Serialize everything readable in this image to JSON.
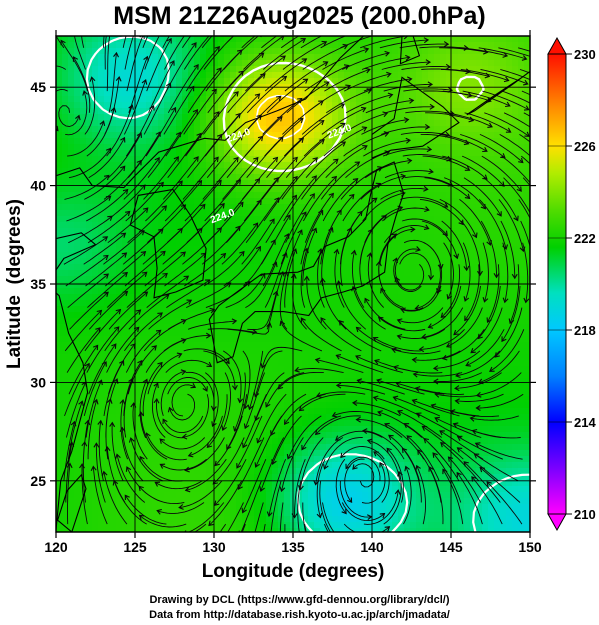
{
  "title": "MSM 21Z26Aug2025 (200.0hPa)",
  "chart_data": {
    "type": "heatmap",
    "title": "MSM 21Z26Aug2025 (200.0hPa)",
    "xlabel": "Longitude (degrees)",
    "ylabel": "Latitude  (degrees)",
    "xlim": [
      120,
      150
    ],
    "ylim": [
      22.4,
      47.6
    ],
    "x_ticks": [
      120,
      125,
      130,
      135,
      140,
      145,
      150
    ],
    "y_ticks": [
      25,
      30,
      35,
      40,
      45
    ],
    "grid": true,
    "colorbar": {
      "range": [
        210,
        230
      ],
      "ticks": [
        210,
        214,
        218,
        222,
        226,
        230
      ],
      "colors": [
        "#ff00ff",
        "#0000ff",
        "#00b0ff",
        "#00e0c0",
        "#00d000",
        "#70e000",
        "#e0f000",
        "#ffb000",
        "#ff2000"
      ],
      "placement": "right"
    },
    "contour_labels": [
      {
        "text": "224.0",
        "lon": 131.6,
        "lat": 42.4
      },
      {
        "text": "224.0",
        "lon": 138.0,
        "lat": 42.6
      },
      {
        "text": "224.0",
        "lon": 130.6,
        "lat": 38.3
      }
    ],
    "field_hotspots": [
      {
        "name": "northwest-cold-pool",
        "lon": 124.5,
        "lat": 45.5,
        "value": 219.5
      },
      {
        "name": "hokkaido-warm-core",
        "lon": 134.0,
        "lat": 43.5,
        "value": 227.0
      },
      {
        "name": "south-cold-trough",
        "lon": 138.2,
        "lat": 24.0,
        "value": 218.5
      },
      {
        "name": "southeast-cold-pool",
        "lon": 150.0,
        "lat": 23.0,
        "value": 219.5
      },
      {
        "name": "west-cold-pool",
        "lon": 120.0,
        "lat": 37.0,
        "value": 220.5
      },
      {
        "name": "ne-warm-band",
        "lon": 146.0,
        "lat": 45.0,
        "value": 223.5
      }
    ],
    "vector_field": "streamlines"
  },
  "credits": {
    "line1": "Drawing by DCL (https://www.gfd-dennou.org/library/dcl/)",
    "line2": "Data from http://database.rish.kyoto-u.ac.jp/arch/jmadata/"
  }
}
